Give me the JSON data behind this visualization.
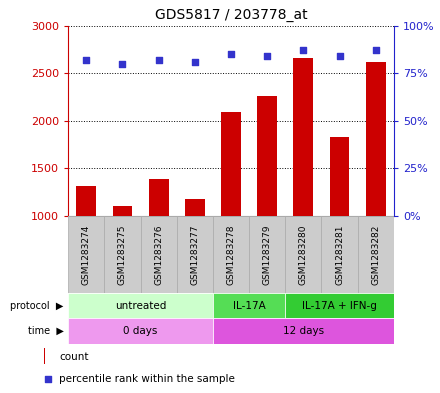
{
  "title": "GDS5817 / 203778_at",
  "samples": [
    "GSM1283274",
    "GSM1283275",
    "GSM1283276",
    "GSM1283277",
    "GSM1283278",
    "GSM1283279",
    "GSM1283280",
    "GSM1283281",
    "GSM1283282"
  ],
  "counts": [
    1320,
    1110,
    1390,
    1185,
    2090,
    2260,
    2660,
    1830,
    2620
  ],
  "percentiles": [
    82,
    80,
    82,
    81,
    85,
    84,
    87,
    84,
    87
  ],
  "ylim_left": [
    1000,
    3000
  ],
  "ylim_right": [
    0,
    100
  ],
  "yticks_left": [
    1000,
    1500,
    2000,
    2500,
    3000
  ],
  "yticks_right": [
    0,
    25,
    50,
    75,
    100
  ],
  "bar_color": "#cc0000",
  "dot_color": "#3333cc",
  "protocol_groups": [
    {
      "label": "untreated",
      "start": 0,
      "end": 4,
      "color": "#ccffcc"
    },
    {
      "label": "IL-17A",
      "start": 4,
      "end": 6,
      "color": "#55dd55"
    },
    {
      "label": "IL-17A + IFN-g",
      "start": 6,
      "end": 9,
      "color": "#33cc33"
    }
  ],
  "time_groups": [
    {
      "label": "0 days",
      "start": 0,
      "end": 4,
      "color": "#ee99ee"
    },
    {
      "label": "12 days",
      "start": 4,
      "end": 9,
      "color": "#dd55dd"
    }
  ],
  "sample_box_color": "#cccccc",
  "sample_box_edge": "#aaaaaa",
  "background_color": "#ffffff",
  "left_axis_color": "#cc0000",
  "right_axis_color": "#2222cc"
}
